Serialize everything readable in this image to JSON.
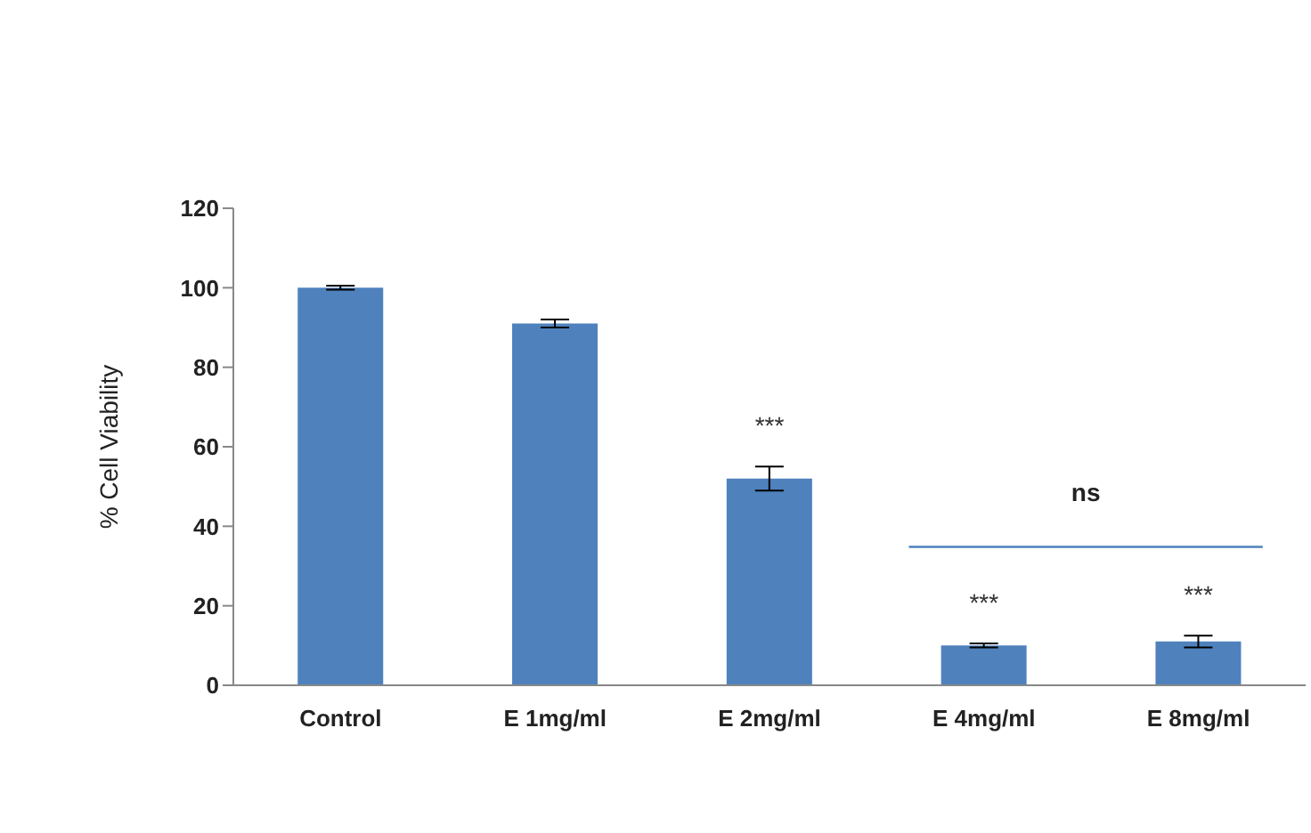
{
  "chart_data": {
    "type": "bar",
    "ylabel": "% Cell Viability",
    "categories": [
      "Control",
      "E 1mg/ml",
      "E 2mg/ml",
      "E 4mg/ml",
      "E 8mg/ml"
    ],
    "values": [
      100,
      91,
      52,
      10,
      11
    ],
    "errors": [
      0.5,
      1,
      3,
      0.5,
      1.5
    ],
    "color": "#4f81bd",
    "ylim": [
      0,
      120
    ],
    "yticks": [
      0,
      20,
      40,
      60,
      80,
      100,
      120
    ],
    "grid": false,
    "legend": false,
    "annotations": [
      {
        "text": "***",
        "x": "E 2mg/ml",
        "y": 52
      },
      {
        "text": "***",
        "x": "E 4mg/ml",
        "y": 10
      },
      {
        "text": "***",
        "x": "E 8mg/ml",
        "y": 11
      },
      "ns"
    ]
  }
}
